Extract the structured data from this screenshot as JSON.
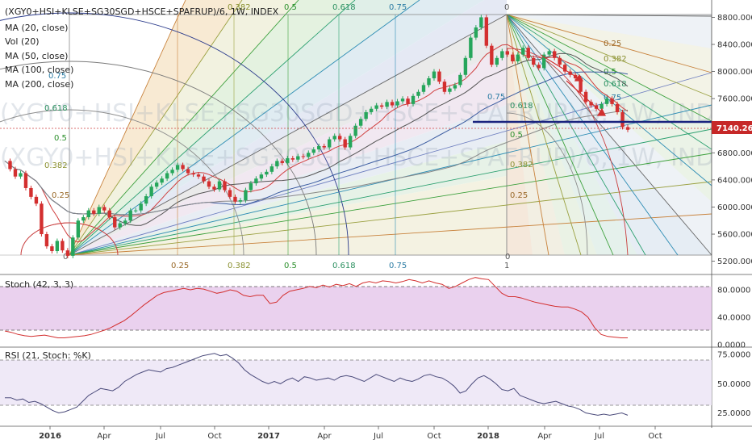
{
  "chart_data": {
    "type": "line",
    "symbol": "(XGY0+HSI+KLSE+SG30SGD+HSCE+SPAFRUP)/6, 1W, INDEX",
    "indicators": [
      "MA (20, close)",
      "Vol (20)",
      "MA (50, close)",
      "MA (100, close)",
      "MA (200, close)"
    ],
    "current_price": "7140.260",
    "x_ticks": [
      "2016",
      "Apr",
      "Jul",
      "Oct",
      "2017",
      "Apr",
      "Jul",
      "Oct",
      "2018",
      "Apr",
      "Jul",
      "Oct"
    ],
    "price_panel": {
      "y_ticks": [
        "8800.000",
        "8400.000",
        "8000.000",
        "7600.000",
        "7200.000",
        "6800.000",
        "6400.000",
        "6000.000",
        "5600.000",
        "5200.000"
      ],
      "ylim": [
        5100,
        8960
      ],
      "series": [
        {
          "values": [
            6680,
            6560,
            6450,
            6500,
            6280,
            6150,
            6050,
            5600,
            5420,
            5350,
            5500,
            5360,
            5280,
            5550,
            5800,
            5850,
            5950,
            5900,
            6000,
            5950,
            5850,
            5700,
            5760,
            5800,
            5950,
            5950,
            6050,
            6160,
            6300,
            6360,
            6420,
            6500,
            6550,
            6620,
            6560,
            6500,
            6480,
            6450,
            6380,
            6300,
            6260,
            6380,
            6250,
            6150,
            6080,
            6100,
            6250,
            6350,
            6420,
            6480,
            6520,
            6600,
            6680,
            6650,
            6720,
            6700,
            6750,
            6740,
            6800,
            6850,
            6900,
            6880,
            7000,
            7050,
            7000,
            6880,
            7050,
            7200,
            7300,
            7400,
            7450,
            7500,
            7480,
            7550,
            7500,
            7560,
            7600,
            7520,
            7640,
            7700,
            7800,
            7900,
            8000,
            7850,
            7700,
            7750,
            7800,
            7950,
            8200,
            8500,
            8650,
            8800,
            8380,
            8100,
            8200,
            8300,
            8250,
            8150,
            8250,
            8350,
            8200,
            8100,
            8050,
            8250,
            8300,
            8200,
            8100,
            8000,
            7950,
            7900,
            7700,
            7550,
            7500,
            7450,
            7520,
            7600,
            7520,
            7400,
            7180,
            7140
          ]
        }
      ],
      "fib_levels": [
        "0",
        "0.25",
        "0.382",
        "0.5",
        "0.618",
        "0.75",
        "1"
      ]
    },
    "stoch_panel": {
      "label": "Stoch (42, 3, 3)",
      "y_ticks": [
        "80.0000",
        "40.0000",
        "0.0000"
      ],
      "ylim": [
        0,
        100
      ],
      "bands": [
        20,
        80
      ],
      "values": [
        20,
        18,
        15,
        13,
        12,
        13,
        14,
        12,
        10,
        10,
        11,
        12,
        13,
        15,
        18,
        21,
        25,
        30,
        35,
        42,
        50,
        58,
        65,
        72,
        76,
        78,
        80,
        82,
        80,
        82,
        81,
        78,
        75,
        77,
        80,
        78,
        72,
        70,
        72,
        72,
        60,
        62,
        72,
        78,
        80,
        82,
        85,
        83,
        87,
        84,
        88,
        86,
        89,
        85,
        90,
        92,
        90,
        93,
        92,
        90,
        92,
        95,
        93,
        90,
        93,
        90,
        88,
        82,
        85,
        90,
        95,
        98,
        96,
        95,
        85,
        75,
        70,
        70,
        68,
        65,
        62,
        60,
        58,
        56,
        55,
        55,
        52,
        48,
        40,
        25,
        15,
        12,
        11,
        10,
        10
      ]
    },
    "rsi_panel": {
      "label": "RSI (21, Stoch: %K)",
      "y_ticks": [
        "75.0000",
        "50.0000",
        "25.0000"
      ],
      "ylim": [
        15,
        80
      ],
      "bands": [
        30,
        70
      ],
      "values": [
        38,
        38,
        36,
        37,
        34,
        35,
        33,
        30,
        27,
        25,
        26,
        28,
        30,
        35,
        40,
        43,
        46,
        45,
        44,
        47,
        52,
        55,
        58,
        60,
        62,
        61,
        60,
        63,
        64,
        66,
        68,
        70,
        72,
        74,
        75,
        76,
        74,
        75,
        72,
        68,
        62,
        58,
        55,
        52,
        50,
        52,
        50,
        53,
        55,
        52,
        56,
        55,
        53,
        54,
        55,
        53,
        56,
        57,
        56,
        54,
        52,
        55,
        58,
        56,
        54,
        52,
        55,
        53,
        52,
        54,
        57,
        58,
        56,
        55,
        52,
        48,
        42,
        44,
        50,
        55,
        57,
        54,
        50,
        45,
        44,
        46,
        40,
        38,
        36,
        34,
        33,
        34,
        35,
        33,
        31,
        30,
        28,
        25,
        24,
        23,
        24,
        23,
        24,
        25,
        23
      ]
    }
  }
}
